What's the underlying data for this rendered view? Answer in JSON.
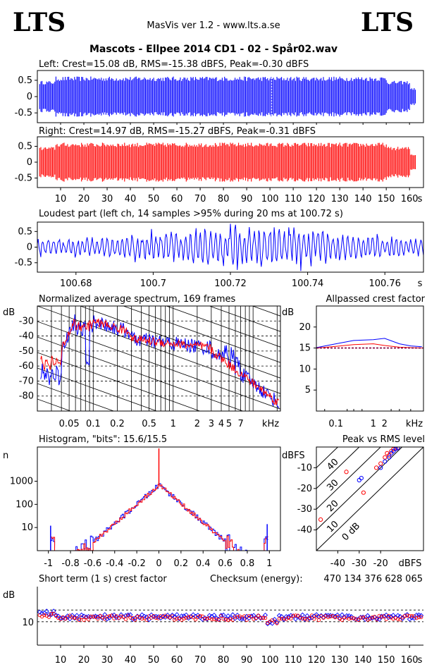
{
  "header": {
    "logo_left": "LTS",
    "logo_right": "LTS",
    "app": "MasVis ver 1.2 - www.lts.a.se",
    "file_title": "Mascots - Ellpee 2014 CD1 - 02 - Spår02.wav"
  },
  "colors": {
    "left": "#0000ff",
    "right": "#ff0000",
    "grid": "#000000"
  },
  "chart_data": [
    {
      "id": "left-waveform",
      "type": "area",
      "title": "Left: Crest=15.08 dB, RMS=-15.38 dBFS, Peak=-0.30 dBFS",
      "yticks": [
        "0.5",
        "0",
        "-0.5"
      ],
      "ylim": [
        -1,
        1
      ],
      "xlim": [
        0,
        166
      ],
      "envelope_peak": 0.7
    },
    {
      "id": "right-waveform",
      "type": "area",
      "title": "Right: Crest=14.97 dB, RMS=-15.27 dBFS, Peak=-0.31 dBFS",
      "yticks": [
        "0.5",
        "0",
        "-0.5"
      ],
      "ylim": [
        -1,
        1
      ],
      "xlim": [
        0,
        166
      ],
      "xticks": [
        "10",
        "20",
        "30",
        "40",
        "50",
        "60",
        "70",
        "80",
        "90",
        "100",
        "110",
        "120",
        "130",
        "140",
        "150",
        "160"
      ],
      "xunit": "s"
    },
    {
      "id": "loudest-part",
      "type": "line",
      "title": "Loudest part (left  ch, 14 samples >95% during 20 ms at 100.72 s)",
      "yticks": [
        "0.5",
        "0",
        "-0.5"
      ],
      "ylim": [
        -1,
        1
      ],
      "xlim": [
        100.67,
        100.77
      ],
      "xticks": [
        "100.68",
        "100.7",
        "100.72",
        "100.74",
        "100.76"
      ],
      "xunit": "s"
    },
    {
      "id": "spectrum",
      "type": "line",
      "title": "Normalized average spectrum, 169 frames",
      "ylabel": "dB",
      "yticks": [
        "-30",
        "-40",
        "-50",
        "-60",
        "-70",
        "-80"
      ],
      "ylim": [
        -90,
        -20
      ],
      "xscale": "log",
      "xticks": [
        "0.05",
        "0.1",
        "0.2",
        "0.5",
        "1",
        "2",
        "3",
        "4",
        "5",
        "7"
      ],
      "xunit": "kHz",
      "xlim": [
        0.02,
        22
      ]
    },
    {
      "id": "allpassed-crest",
      "type": "line",
      "title": "Allpassed crest factor",
      "ylabel": "dB",
      "yticks": [
        "20",
        "15",
        "10",
        "5"
      ],
      "ylim": [
        0,
        25
      ],
      "xscale": "log",
      "xticks": [
        "0.1",
        "1",
        "2"
      ],
      "xunit": "kHz",
      "xlim": [
        0.03,
        22
      ],
      "series": [
        {
          "color": "#0000ff",
          "x": [
            0.03,
            0.1,
            0.3,
            1,
            2,
            5,
            10,
            20
          ],
          "y": [
            15.1,
            16.0,
            16.8,
            17.0,
            17.3,
            16.0,
            15.5,
            15.3
          ]
        },
        {
          "color": "#ff0000",
          "x": [
            0.03,
            0.1,
            0.3,
            1,
            2,
            5,
            10,
            20
          ],
          "y": [
            15.0,
            15.4,
            15.8,
            16.0,
            15.6,
            15.2,
            15.1,
            15.0
          ]
        }
      ],
      "reference_line": 15.0
    },
    {
      "id": "histogram",
      "type": "line",
      "title": "Histogram, \"bits\": 15.6/15.5",
      "ylabel": "n",
      "yscale": "log",
      "yticks": [
        "1000",
        "100",
        "10"
      ],
      "ylim": [
        1,
        30000
      ],
      "xlim": [
        -1.1,
        1.1
      ],
      "xticks": [
        "-1",
        "-0.8",
        "-0.6",
        "-0.4",
        "-0.2",
        "0",
        "0.2",
        "0.4",
        "0.6",
        "0.8",
        "1"
      ],
      "center_peak": 700
    },
    {
      "id": "peak-vs-rms",
      "type": "scatter",
      "title": "Peak vs RMS level",
      "ylabel": "dBFS",
      "yticks": [
        "-10",
        "-20",
        "-30",
        "-40"
      ],
      "xticks": [
        "-40",
        "-30",
        "-20"
      ],
      "xunit": "dBFS",
      "xlim": [
        -50,
        0
      ],
      "ylim": [
        -50,
        0
      ],
      "diagonals": [
        "40",
        "30",
        "20",
        "10",
        "0 dB"
      ],
      "series": [
        {
          "color": "#ff0000",
          "x": [
            -48,
            -36,
            -28,
            -22,
            -20,
            -18,
            -17,
            -16,
            -15,
            -14,
            -13,
            -12
          ],
          "y": [
            -35,
            -12,
            -22,
            -10,
            -8,
            -5,
            -3,
            -4,
            -2,
            -1,
            -0.5,
            -0.3
          ]
        },
        {
          "color": "#0000ff",
          "x": [
            -30,
            -29,
            -20,
            -18,
            -16,
            -15,
            -14,
            -13,
            -12
          ],
          "y": [
            -16,
            -15,
            -10,
            -7,
            -5,
            -3,
            -2,
            -1,
            -0.5
          ]
        }
      ]
    },
    {
      "id": "short-term-crest",
      "type": "scatter",
      "title": "Short term (1 s) crest factor",
      "checksum_label": "Checksum (energy):",
      "checksum_value": "470 134 376 628 065",
      "ylabel": "dB",
      "yticks": [
        "10"
      ],
      "ylim": [
        0,
        25
      ],
      "xlim": [
        0,
        166
      ],
      "xticks": [
        "10",
        "20",
        "30",
        "40",
        "50",
        "60",
        "70",
        "80",
        "90",
        "100",
        "110",
        "120",
        "130",
        "140",
        "150",
        "160"
      ],
      "xunit": "s",
      "gridlines": [
        10,
        15
      ],
      "mean_crest": 12
    }
  ]
}
